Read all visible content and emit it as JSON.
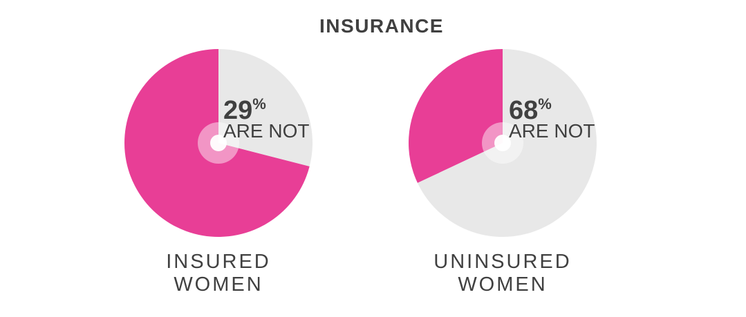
{
  "chart_data": {
    "type": "pie",
    "title": "INSURANCE",
    "charts": [
      {
        "category_line1": "INSURED",
        "category_line2": "WOMEN",
        "percent_label": "29",
        "percent_sign": "%",
        "note": "ARE NOT",
        "slices": [
          {
            "label": "ARE NOT",
            "value": 29
          },
          {
            "label": "",
            "value": 71
          }
        ]
      },
      {
        "category_line1": "UNINSURED",
        "category_line2": "WOMEN",
        "percent_label": "68",
        "percent_sign": "%",
        "note": "ARE NOT",
        "slices": [
          {
            "label": "ARE NOT",
            "value": 68
          },
          {
            "label": "",
            "value": 32
          }
        ]
      }
    ]
  },
  "colors": {
    "highlight": "#e83e96",
    "neutral": "#e8e8e8",
    "text": "#404040",
    "center_ring": "#f2a8cb"
  }
}
